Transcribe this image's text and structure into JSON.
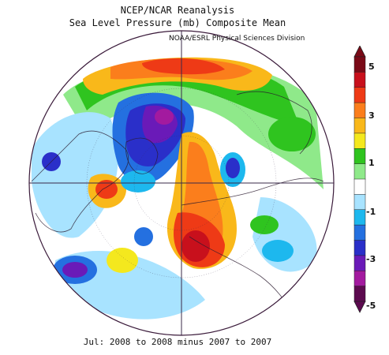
{
  "header": {
    "title": "NCEP/NCAR Reanalysis",
    "subtitle": "Sea Level Pressure (mb) Composite Mean",
    "credit": "NOAA/ESRL Physical Sciences Division"
  },
  "footer": {
    "caption": "Jul: 2008 to 2008 minus 2007 to 2007"
  },
  "colorbar": {
    "tick_labels": [
      "5",
      "3",
      "1",
      "-1",
      "-3",
      "-5"
    ],
    "colors": [
      "#7a0a17",
      "#c8101c",
      "#ee3a16",
      "#fb7e1c",
      "#f9b81a",
      "#f4e81e",
      "#2fc41f",
      "#8fe98a",
      "#ffffff",
      "#a8e3ff",
      "#1db8ee",
      "#2470e0",
      "#2a2fc9",
      "#6a1ab8",
      "#a31a9f",
      "#5c0a4f"
    ]
  },
  "chart_data": {
    "type": "heatmap",
    "title": "Sea Level Pressure (mb) Composite Mean",
    "units": "mb",
    "projection": "north polar stereographic",
    "range": [
      -5,
      5
    ],
    "colorbar_ticks": [
      -5,
      -3,
      -1,
      1,
      3,
      5
    ],
    "period": "Jul: 2008 to 2008 minus 2007 to 2007"
  }
}
